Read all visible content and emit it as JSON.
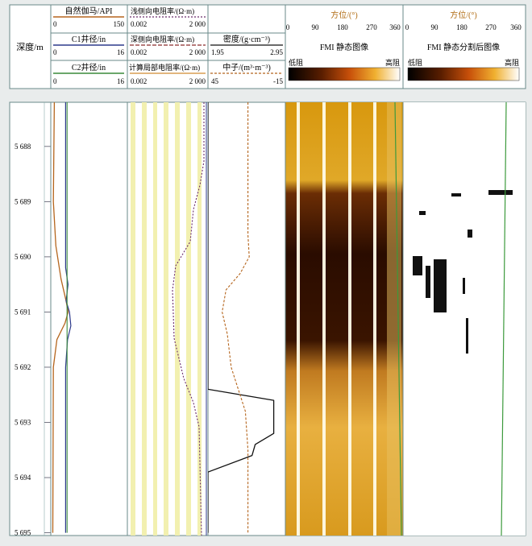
{
  "header": {
    "depth_label": "深度/m",
    "tracks": [
      {
        "name": "自然伽马/API",
        "min": "0",
        "max": "150",
        "color": "#b5651d"
      },
      {
        "name": "C1井径/in",
        "min": "0",
        "max": "16",
        "color": "#2d3a8c"
      },
      {
        "name": "C2井径/in",
        "min": "0",
        "max": "16",
        "color": "#3a8a3a"
      },
      {
        "name": "浅侧向电阻率/(Ω·m)",
        "min": "0.002",
        "max": "2 000",
        "color": "#6a2a6a"
      },
      {
        "name": "深侧向电阻率/(Ω·m)",
        "min": "0.002",
        "max": "2 000",
        "color": "#8b2a2a"
      },
      {
        "name": "计算局部电阻率/(Ω·m)",
        "min": "0.002",
        "max": "2 000",
        "color": "#d08a30"
      },
      {
        "name": "密度/(g·cm⁻³)",
        "min": "1.95",
        "max": "2.95",
        "color": "#111111"
      },
      {
        "name": "中子/(m³·m⁻³)",
        "min": "45",
        "max": "-15",
        "color": "#b5651d"
      }
    ],
    "fmi_static": {
      "azimuth_label": "方位/(°)",
      "ticks": [
        "0",
        "90",
        "180",
        "270",
        "360"
      ],
      "title": "FMI 静态图像",
      "low": "低阻",
      "high": "高阻"
    },
    "fmi_segmented": {
      "azimuth_label": "方位/(°)",
      "ticks": [
        "0",
        "90",
        "180",
        "270",
        "360"
      ],
      "title": "FMI 静态分割后图像",
      "low": "低阻",
      "high": "高阻"
    }
  },
  "chart_data": {
    "type": "line",
    "depth_axis": {
      "ticks": [
        "5 688",
        "5 689",
        "5 690",
        "5 691",
        "5 692",
        "5 693",
        "5 694",
        "5 695"
      ],
      "range": [
        5687.2,
        5695.05
      ]
    },
    "series": [
      {
        "name": "自然伽马/API",
        "color": "#b5651d",
        "depth": [
          5687.2,
          5689.0,
          5689.8,
          5690.4,
          5690.8,
          5691.0,
          5691.2,
          5691.5,
          5692.0,
          5695.0
        ],
        "values": [
          7,
          5,
          10,
          20,
          30,
          34,
          28,
          12,
          5,
          4
        ]
      },
      {
        "name": "C1井径/in",
        "color": "#2d3a8c",
        "depth": [
          5687.2,
          5690.2,
          5690.5,
          5690.8,
          5691.0,
          5691.25,
          5691.5,
          5692.0,
          5695.0
        ],
        "values": [
          3.1,
          3.1,
          3.6,
          3.2,
          3.9,
          4.2,
          3.5,
          3.1,
          3.1
        ]
      },
      {
        "name": "C2井径/in",
        "color": "#3a8a3a",
        "depth": [
          5687.2,
          5695.0
        ],
        "values": [
          3.4,
          3.4
        ]
      },
      {
        "name": "密度/(g·cm⁻³)",
        "color": "#111111",
        "depth": [
          5687.2,
          5692.4,
          5692.6,
          5693.2,
          5693.4,
          5693.6,
          5693.9,
          5695.0
        ],
        "values": [
          1.95,
          1.95,
          2.8,
          2.8,
          2.56,
          2.52,
          1.95,
          1.95
        ]
      },
      {
        "name": "中子/(m³·m⁻³)",
        "color": "#b5651d",
        "depth": [
          5687.2,
          5689.6,
          5690.0,
          5690.3,
          5690.6,
          5691.0,
          5691.4,
          5692.0,
          5692.8,
          5693.5,
          5695.0
        ],
        "values": [
          14,
          14,
          13,
          20,
          31,
          34,
          30,
          27,
          16,
          14,
          14
        ]
      }
    ]
  }
}
